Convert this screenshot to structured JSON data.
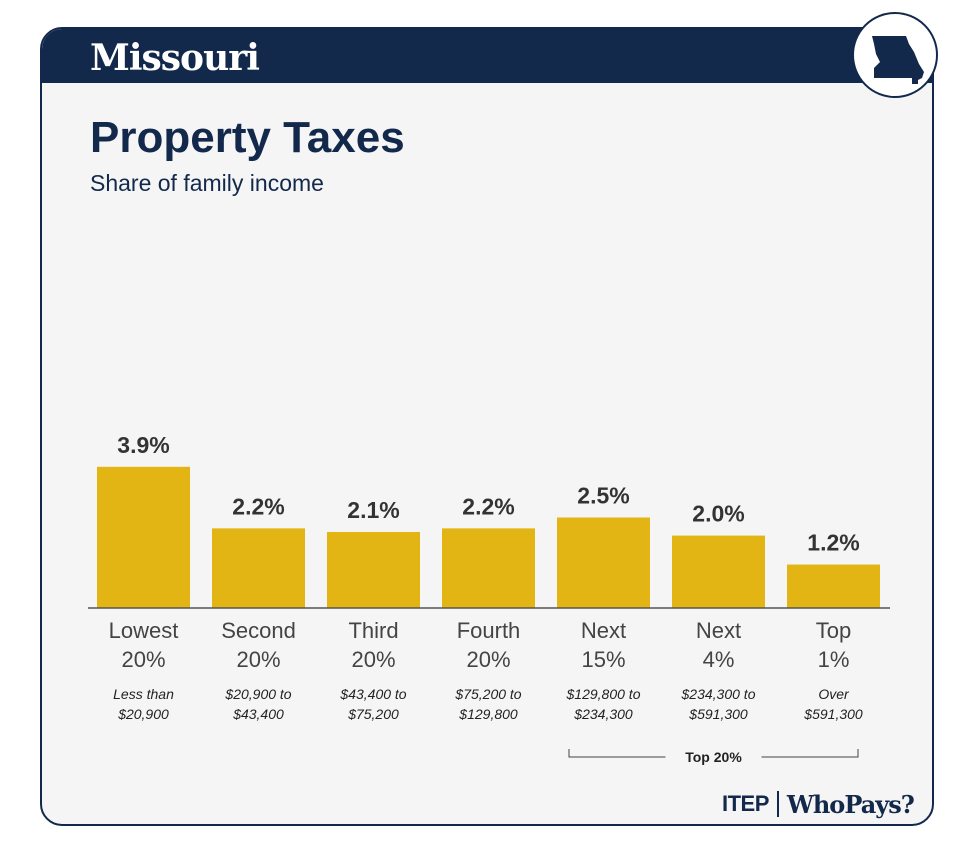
{
  "state": "Missouri",
  "title": "Property Taxes",
  "subtitle": "Share of family income",
  "colors": {
    "navy": "#13294b",
    "bar": "#e2b514",
    "card": "#f5f5f5"
  },
  "chart_data": {
    "type": "bar",
    "title": "Property Taxes",
    "subtitle": "Share of family income",
    "categories": [
      [
        "Lowest",
        "20%"
      ],
      [
        "Second",
        "20%"
      ],
      [
        "Third",
        "20%"
      ],
      [
        "Fourth",
        "20%"
      ],
      [
        "Next",
        "15%"
      ],
      [
        "Next",
        "4%"
      ],
      [
        "Top",
        "1%"
      ]
    ],
    "income_ranges": [
      [
        "Less than",
        "$20,900"
      ],
      [
        "$20,900 to",
        "$43,400"
      ],
      [
        "$43,400 to",
        "$75,200"
      ],
      [
        "$75,200 to",
        "$129,800"
      ],
      [
        "$129,800 to",
        "$234,300"
      ],
      [
        "$234,300 to",
        "$591,300"
      ],
      [
        "Over",
        "$591,300"
      ]
    ],
    "values": [
      3.9,
      2.2,
      2.1,
      2.2,
      2.5,
      2.0,
      1.2
    ],
    "value_labels": [
      "3.9%",
      "2.2%",
      "2.1%",
      "2.2%",
      "2.5%",
      "2.0%",
      "1.2%"
    ],
    "group_bracket": {
      "label": "Top 20%",
      "from_index": 4,
      "to_index": 6
    },
    "ylim": [
      0,
      4
    ],
    "grid": false,
    "legend": "none"
  },
  "footer": {
    "logo_left": "ITEP",
    "logo_right": "WhoPays?"
  }
}
